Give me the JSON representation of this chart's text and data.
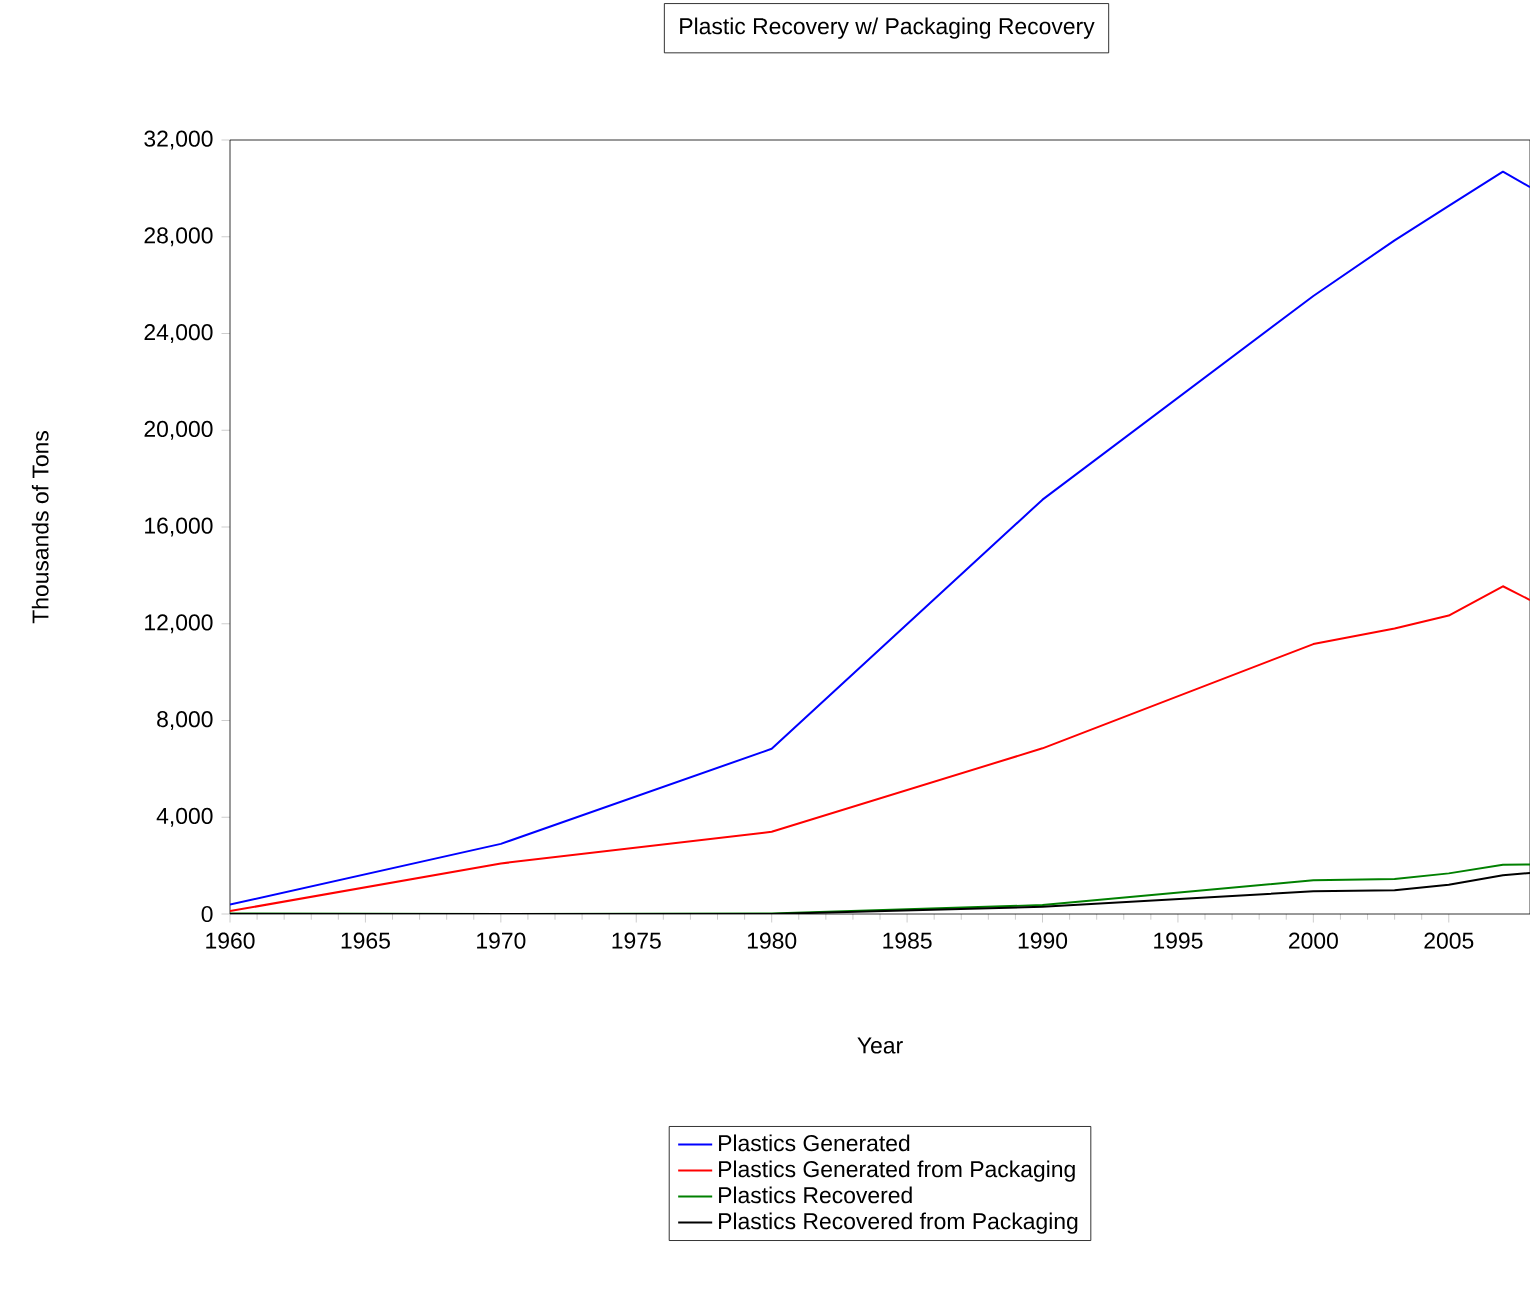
{
  "chart_data": {
    "type": "line",
    "title": "Plastic Recovery w/ Packaging Recovery",
    "xlabel": "Year",
    "ylabel": "Thousands of Tons",
    "x": [
      1960,
      1970,
      1980,
      1990,
      2000,
      2003,
      2005,
      2007,
      2008
    ],
    "series": [
      {
        "name": "Plastics Generated",
        "color": "#0000ff",
        "values": [
          390,
          2900,
          6830,
          17130,
          25550,
          27850,
          29280,
          30690,
          30050
        ]
      },
      {
        "name": "Plastics Generated from Packaging",
        "color": "#ff0000",
        "values": [
          120,
          2090,
          3400,
          6850,
          11160,
          11800,
          12340,
          13550,
          12980
        ]
      },
      {
        "name": "Plastics Recovered",
        "color": "#008000",
        "values": [
          20,
          0,
          20,
          370,
          1400,
          1450,
          1680,
          2040,
          2050
        ]
      },
      {
        "name": "Plastics Recovered from Packaging",
        "color": "#000000",
        "values": [
          0,
          0,
          0,
          300,
          940,
          980,
          1210,
          1600,
          1700
        ]
      }
    ],
    "xlim": [
      1960,
      2008
    ],
    "xticks": [
      1960,
      1965,
      1970,
      1975,
      1980,
      1985,
      1990,
      1995,
      2000,
      2005
    ],
    "ylim": [
      0,
      32000
    ],
    "yticks": [
      0,
      {
        "value": 4000,
        "label": "4,000"
      },
      {
        "value": 8000,
        "label": "8,000"
      },
      {
        "value": 12000,
        "label": "12,000"
      },
      {
        "value": 16000,
        "label": "16,000"
      },
      {
        "value": 20000,
        "label": "20,000"
      },
      {
        "value": 24000,
        "label": "24,000"
      },
      {
        "value": 28000,
        "label": "28,000"
      },
      {
        "value": 32000,
        "label": "32,000"
      }
    ],
    "legend": "bottom"
  }
}
